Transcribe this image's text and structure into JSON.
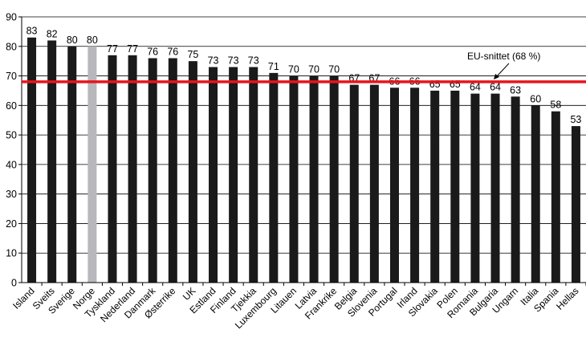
{
  "chart_data": {
    "type": "bar",
    "title": "",
    "xlabel": "",
    "ylabel": "",
    "ylim": [
      0,
      90
    ],
    "yticks": [
      0,
      10,
      20,
      30,
      40,
      50,
      60,
      70,
      80,
      90
    ],
    "grid": "horizontal",
    "categories": [
      "Island",
      "Sveits",
      "Sverige",
      "Norge",
      "Tyskland",
      "Nederland",
      "Danmark",
      "Østerrike",
      "UK",
      "Estland",
      "Finland",
      "Tjekkia",
      "Luxembourg",
      "Litauen",
      "Latvia",
      "Frankrike",
      "Belgia",
      "Slovenia",
      "Portugal",
      "Irland",
      "Slovakia",
      "Polen",
      "Romania",
      "Bulgaria",
      "Ungarn",
      "Italia",
      "Spania",
      "Hellas"
    ],
    "values": [
      83,
      82,
      80,
      80,
      77,
      77,
      76,
      76,
      75,
      73,
      73,
      73,
      71,
      70,
      70,
      70,
      67,
      67,
      66,
      66,
      65,
      65,
      64,
      64,
      63,
      60,
      58,
      53
    ],
    "value_labels": [
      "83",
      "82",
      "80",
      "80",
      "77",
      "77",
      "76",
      "76",
      "75",
      "73",
      "73",
      "73",
      "71",
      "70",
      "70",
      "70",
      "67",
      "67",
      "66",
      "66",
      "65",
      "65",
      "64",
      "64",
      "63",
      "60",
      "58",
      "53"
    ],
    "highlight_category": "Norge",
    "reference_line": {
      "value": 68,
      "label": "EU-snittet (68 %)"
    },
    "colors": {
      "bar": "#1a1a1a",
      "highlight": "#b8b8bc",
      "reference_line": "#e8141c",
      "grid": "#000000"
    }
  }
}
